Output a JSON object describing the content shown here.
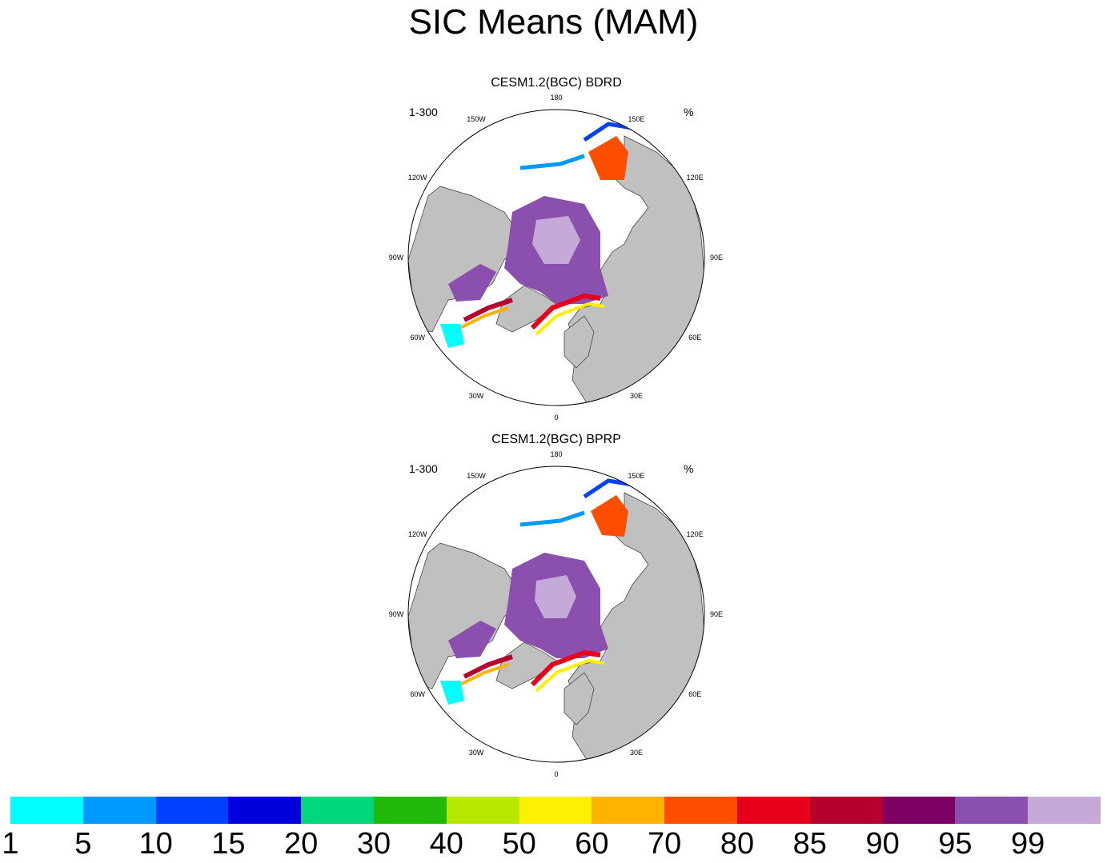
{
  "title": "SIC Means (MAM)",
  "panels": [
    {
      "subtitle": "CESM1.2(BGC) BDRD",
      "left_label": "1-300",
      "right_label": "%"
    },
    {
      "subtitle": "CESM1.2(BGC) BPRP",
      "left_label": "1-300",
      "right_label": "%"
    }
  ],
  "lon_labels": [
    "180",
    "150E",
    "120E",
    "90E",
    "60E",
    "30E",
    "0",
    "30W",
    "60W",
    "90W",
    "120W",
    "150W"
  ],
  "colorbar": {
    "colors": [
      "#00ffff",
      "#0099ff",
      "#0040ff",
      "#0000dd",
      "#00d67a",
      "#22b80c",
      "#b8e800",
      "#ffef00",
      "#ffb300",
      "#ff4e00",
      "#e8001a",
      "#b5002f",
      "#7d0063",
      "#8b4fae",
      "#c5a9d9"
    ],
    "labels": [
      "1",
      "5",
      "10",
      "15",
      "20",
      "30",
      "40",
      "50",
      "60",
      "70",
      "80",
      "85",
      "90",
      "95",
      "99"
    ]
  }
}
